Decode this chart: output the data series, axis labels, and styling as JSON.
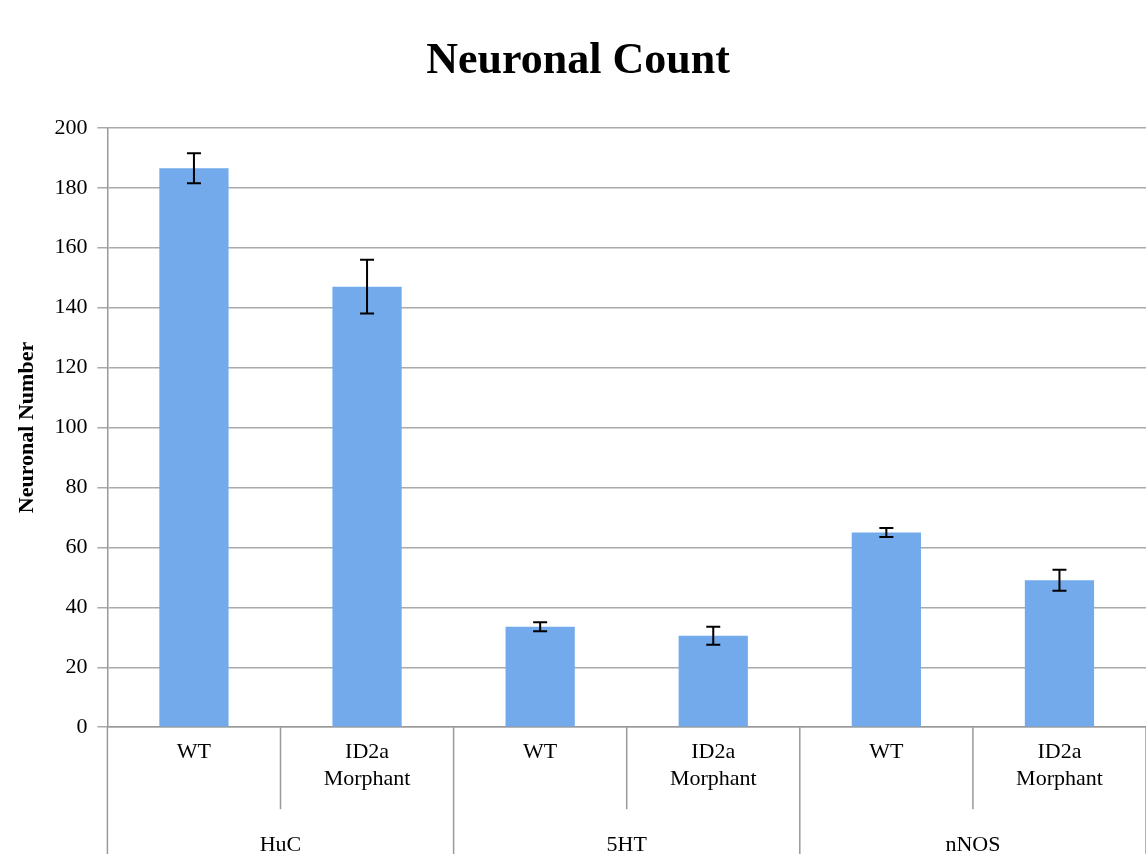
{
  "chart_data": {
    "type": "bar",
    "title": "Neuronal Count",
    "ylabel": "Neuronal Number",
    "categories": [
      "WT",
      "ID2a Morphant",
      "WT",
      "ID2a Morphant",
      "WT",
      "ID2a Morphant"
    ],
    "values": [
      186.5,
      147,
      33.5,
      30.5,
      65,
      49
    ],
    "errors": [
      5,
      9,
      1.5,
      3,
      1.5,
      3.5
    ],
    "color": "#72aaeb",
    "annotations": [
      "HuC",
      "5HT",
      "nNOS"
    ],
    "ylim": [
      0,
      200
    ],
    "yticks": [
      0,
      20,
      40,
      60,
      80,
      100,
      120,
      140,
      160,
      180,
      200
    ],
    "grid": "y",
    "legend": false
  }
}
